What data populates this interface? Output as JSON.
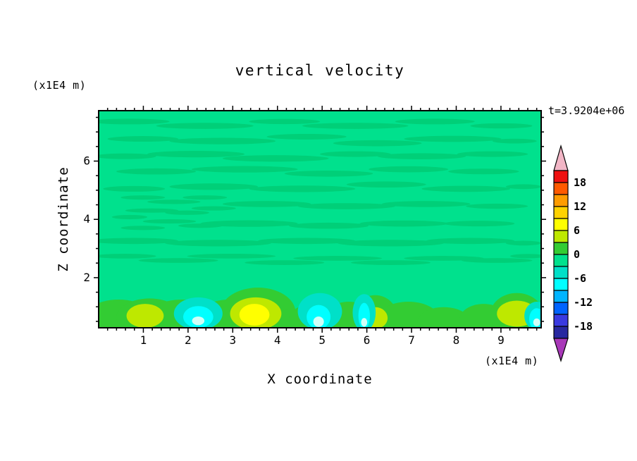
{
  "title": "vertical velocity",
  "timestamp": "t=3.9204e+06",
  "axes": {
    "x": {
      "label": "X coordinate",
      "unit": "(x1E4 m)"
    },
    "z": {
      "label": "Z coordinate",
      "unit": "(x1E4 m)"
    }
  },
  "chart_data": {
    "type": "heatmap",
    "style": "filled-contour",
    "title": "vertical velocity",
    "xlabel": "X coordinate",
    "ylabel": "Z coordinate",
    "x_unit": "x1E4 m",
    "z_unit": "x1E4 m",
    "time_annotation": "t=3.9204e+06",
    "x_range": [
      0,
      9.9
    ],
    "z_range": [
      0.28,
      7.73
    ],
    "x_ticks": [
      1,
      2,
      3,
      4,
      5,
      6,
      7,
      8,
      9
    ],
    "z_ticks": [
      2,
      4,
      6
    ],
    "x_minor_step": 0.2,
    "z_minor_step": 0.5,
    "contour_interval": 3,
    "levels": [
      -21,
      -18,
      -15,
      -12,
      -9,
      -6,
      -3,
      0,
      3,
      6,
      9,
      12,
      15,
      18,
      21
    ],
    "colorbar": {
      "labels": [
        "18",
        "12",
        "6",
        "0",
        "-6",
        "-12",
        "-18"
      ],
      "over_color": "#F2B6C6",
      "under_color": "#A838B8",
      "segments_top_to_bottom": [
        {
          "min": 18,
          "max": 21,
          "color": "#EE1111"
        },
        {
          "min": 15,
          "max": 18,
          "color": "#FF5A00"
        },
        {
          "min": 12,
          "max": 15,
          "color": "#FF9C00"
        },
        {
          "min": 9,
          "max": 12,
          "color": "#FFD200"
        },
        {
          "min": 6,
          "max": 9,
          "color": "#FFFF00"
        },
        {
          "min": 3,
          "max": 6,
          "color": "#BEE800"
        },
        {
          "min": 0,
          "max": 3,
          "color": "#33CC33"
        },
        {
          "min": -3,
          "max": 0,
          "color": "#00E18D"
        },
        {
          "min": -6,
          "max": -3,
          "color": "#00E0C8"
        },
        {
          "min": -9,
          "max": -6,
          "color": "#00FFFF"
        },
        {
          "min": -12,
          "max": -9,
          "color": "#00B4FF"
        },
        {
          "min": -15,
          "max": -12,
          "color": "#0064FF"
        },
        {
          "min": -18,
          "max": -15,
          "color": "#3A3AE0"
        },
        {
          "min": -21,
          "max": -18,
          "color": "#2828A0"
        }
      ]
    },
    "field_summary": "Mostly near-zero vertical velocity (-3..0 band) with thin horizontal wave streaks aloft; alternating updraft (yellow/green, ~+6..+12) and downdraft (cyan/teal, ~-6..-12) cells along the bottom boundary below z=2.",
    "background_band": [
      -3,
      0
    ],
    "bottom_features": [
      {
        "x": 1.05,
        "z": 0.8,
        "w_est": 7,
        "type": "updraft"
      },
      {
        "x": 2.25,
        "z": 0.8,
        "w_est": -8,
        "type": "downdraft"
      },
      {
        "x": 3.5,
        "z": 0.8,
        "w_est": 10,
        "type": "updraft"
      },
      {
        "x": 5.0,
        "z": 0.8,
        "w_est": -8,
        "type": "downdraft"
      },
      {
        "x": 6.0,
        "z": 0.8,
        "w_est": -8,
        "type": "downdraft"
      },
      {
        "x": 6.25,
        "z": 0.6,
        "w_est": 7,
        "type": "updraft"
      },
      {
        "x": 9.4,
        "z": 0.9,
        "w_est": 8,
        "type": "updraft"
      },
      {
        "x": 9.85,
        "z": 0.7,
        "w_est": -8,
        "type": "downdraft"
      }
    ],
    "field": {
      "palette": {
        "bg": "#00E18D",
        "streak": "#00CF78",
        "green": "#33CC33",
        "yellowgreen": "#BEE800",
        "yellow": "#FFFF00",
        "teal": "#00E0C8",
        "cyan": "#00FFFF",
        "pale": "#CFFFF8"
      },
      "streaks": [
        [
          0.07,
          0.05,
          0.09,
          0.013
        ],
        [
          0.24,
          0.07,
          0.11,
          0.014
        ],
        [
          0.42,
          0.05,
          0.08,
          0.012
        ],
        [
          0.58,
          0.07,
          0.12,
          0.014
        ],
        [
          0.76,
          0.05,
          0.09,
          0.013
        ],
        [
          0.91,
          0.07,
          0.07,
          0.012
        ],
        [
          0.1,
          0.13,
          0.08,
          0.013
        ],
        [
          0.28,
          0.14,
          0.12,
          0.015
        ],
        [
          0.47,
          0.12,
          0.09,
          0.013
        ],
        [
          0.63,
          0.15,
          0.1,
          0.014
        ],
        [
          0.8,
          0.13,
          0.11,
          0.014
        ],
        [
          0.94,
          0.14,
          0.05,
          0.011
        ],
        [
          0.06,
          0.21,
          0.07,
          0.013
        ],
        [
          0.22,
          0.2,
          0.11,
          0.015
        ],
        [
          0.4,
          0.22,
          0.12,
          0.015
        ],
        [
          0.58,
          0.2,
          0.08,
          0.013
        ],
        [
          0.73,
          0.21,
          0.1,
          0.014
        ],
        [
          0.89,
          0.2,
          0.08,
          0.013
        ],
        [
          0.13,
          0.28,
          0.09,
          0.014
        ],
        [
          0.33,
          0.27,
          0.12,
          0.015
        ],
        [
          0.52,
          0.29,
          0.1,
          0.014
        ],
        [
          0.7,
          0.27,
          0.09,
          0.014
        ],
        [
          0.87,
          0.28,
          0.08,
          0.013
        ],
        [
          0.08,
          0.36,
          0.07,
          0.013
        ],
        [
          0.26,
          0.35,
          0.1,
          0.015
        ],
        [
          0.46,
          0.36,
          0.12,
          0.015
        ],
        [
          0.65,
          0.34,
          0.09,
          0.014
        ],
        [
          0.83,
          0.36,
          0.1,
          0.014
        ],
        [
          0.96,
          0.35,
          0.04,
          0.011
        ],
        [
          0.1,
          0.4,
          0.05,
          0.01
        ],
        [
          0.17,
          0.42,
          0.06,
          0.01
        ],
        [
          0.24,
          0.4,
          0.05,
          0.01
        ],
        [
          0.12,
          0.46,
          0.06,
          0.01
        ],
        [
          0.2,
          0.47,
          0.05,
          0.01
        ],
        [
          0.07,
          0.49,
          0.04,
          0.01
        ],
        [
          0.26,
          0.45,
          0.05,
          0.01
        ],
        [
          0.16,
          0.51,
          0.06,
          0.01
        ],
        [
          0.1,
          0.54,
          0.05,
          0.01
        ],
        [
          0.23,
          0.53,
          0.05,
          0.01
        ],
        [
          0.38,
          0.43,
          0.1,
          0.014
        ],
        [
          0.56,
          0.44,
          0.11,
          0.014
        ],
        [
          0.74,
          0.43,
          0.1,
          0.014
        ],
        [
          0.9,
          0.44,
          0.07,
          0.012
        ],
        [
          0.34,
          0.52,
          0.11,
          0.015
        ],
        [
          0.52,
          0.53,
          0.09,
          0.014
        ],
        [
          0.69,
          0.52,
          0.1,
          0.014
        ],
        [
          0.86,
          0.52,
          0.08,
          0.013
        ],
        [
          0.08,
          0.6,
          0.1,
          0.014
        ],
        [
          0.27,
          0.61,
          0.12,
          0.015
        ],
        [
          0.47,
          0.6,
          0.11,
          0.014
        ],
        [
          0.66,
          0.61,
          0.12,
          0.015
        ],
        [
          0.84,
          0.6,
          0.1,
          0.014
        ],
        [
          0.96,
          0.61,
          0.04,
          0.011
        ],
        [
          0.06,
          0.67,
          0.07,
          0.011
        ],
        [
          0.18,
          0.69,
          0.09,
          0.011
        ],
        [
          0.3,
          0.67,
          0.1,
          0.011
        ],
        [
          0.42,
          0.7,
          0.09,
          0.011
        ],
        [
          0.54,
          0.68,
          0.1,
          0.011
        ],
        [
          0.66,
          0.7,
          0.09,
          0.011
        ],
        [
          0.78,
          0.68,
          0.09,
          0.011
        ],
        [
          0.9,
          0.69,
          0.08,
          0.011
        ],
        [
          0.97,
          0.67,
          0.04,
          0.01
        ]
      ],
      "blobs": [
        {
          "c": "green",
          "x": 0.5,
          "y": 1.06,
          "rx": 0.55,
          "ry": 0.1
        },
        {
          "c": "green",
          "x": 0.045,
          "y": 0.99,
          "rx": 0.09,
          "ry": 0.12
        },
        {
          "c": "green",
          "x": 0.115,
          "y": 0.955,
          "rx": 0.075,
          "ry": 0.09
        },
        {
          "c": "green",
          "x": 0.19,
          "y": 0.97,
          "rx": 0.09,
          "ry": 0.1
        },
        {
          "c": "green",
          "x": 0.295,
          "y": 0.965,
          "rx": 0.075,
          "ry": 0.095
        },
        {
          "c": "green",
          "x": 0.36,
          "y": 0.93,
          "rx": 0.085,
          "ry": 0.115
        },
        {
          "c": "green",
          "x": 0.435,
          "y": 0.985,
          "rx": 0.06,
          "ry": 0.07
        },
        {
          "c": "green",
          "x": 0.475,
          "y": 0.965,
          "rx": 0.045,
          "ry": 0.07
        },
        {
          "c": "green",
          "x": 0.565,
          "y": 0.97,
          "rx": 0.055,
          "ry": 0.09
        },
        {
          "c": "green",
          "x": 0.625,
          "y": 0.95,
          "rx": 0.05,
          "ry": 0.1
        },
        {
          "c": "green",
          "x": 0.7,
          "y": 0.96,
          "rx": 0.07,
          "ry": 0.08
        },
        {
          "c": "green",
          "x": 0.78,
          "y": 0.975,
          "rx": 0.06,
          "ry": 0.07
        },
        {
          "c": "green",
          "x": 0.87,
          "y": 0.965,
          "rx": 0.055,
          "ry": 0.075
        },
        {
          "c": "green",
          "x": 0.945,
          "y": 0.94,
          "rx": 0.06,
          "ry": 0.1
        },
        {
          "c": "yellowgreen",
          "x": 0.105,
          "y": 0.945,
          "rx": 0.042,
          "ry": 0.055
        },
        {
          "c": "yellowgreen",
          "x": 0.355,
          "y": 0.935,
          "rx": 0.058,
          "ry": 0.075
        },
        {
          "c": "yellowgreen",
          "x": 0.625,
          "y": 0.955,
          "rx": 0.028,
          "ry": 0.05
        },
        {
          "c": "yellowgreen",
          "x": 0.945,
          "y": 0.935,
          "rx": 0.045,
          "ry": 0.06
        },
        {
          "c": "yellow",
          "x": 0.352,
          "y": 0.94,
          "rx": 0.034,
          "ry": 0.05
        },
        {
          "c": "teal",
          "x": 0.225,
          "y": 0.935,
          "rx": 0.055,
          "ry": 0.075
        },
        {
          "c": "teal",
          "x": 0.5,
          "y": 0.925,
          "rx": 0.05,
          "ry": 0.085
        },
        {
          "c": "teal",
          "x": 0.6,
          "y": 0.93,
          "rx": 0.026,
          "ry": 0.085
        },
        {
          "c": "teal",
          "x": 0.99,
          "y": 0.945,
          "rx": 0.028,
          "ry": 0.065
        },
        {
          "c": "cyan",
          "x": 0.225,
          "y": 0.95,
          "rx": 0.034,
          "ry": 0.05
        },
        {
          "c": "cyan",
          "x": 0.497,
          "y": 0.95,
          "rx": 0.027,
          "ry": 0.055
        },
        {
          "c": "cyan",
          "x": 0.6,
          "y": 0.945,
          "rx": 0.013,
          "ry": 0.06
        },
        {
          "c": "cyan",
          "x": 0.99,
          "y": 0.96,
          "rx": 0.017,
          "ry": 0.05
        },
        {
          "c": "pale",
          "x": 0.225,
          "y": 0.968,
          "rx": 0.014,
          "ry": 0.02
        },
        {
          "c": "pale",
          "x": 0.497,
          "y": 0.972,
          "rx": 0.012,
          "ry": 0.024
        },
        {
          "c": "pale",
          "x": 0.6,
          "y": 0.975,
          "rx": 0.007,
          "ry": 0.02
        },
        {
          "c": "pale",
          "x": 0.99,
          "y": 0.975,
          "rx": 0.008,
          "ry": 0.018
        }
      ]
    }
  }
}
